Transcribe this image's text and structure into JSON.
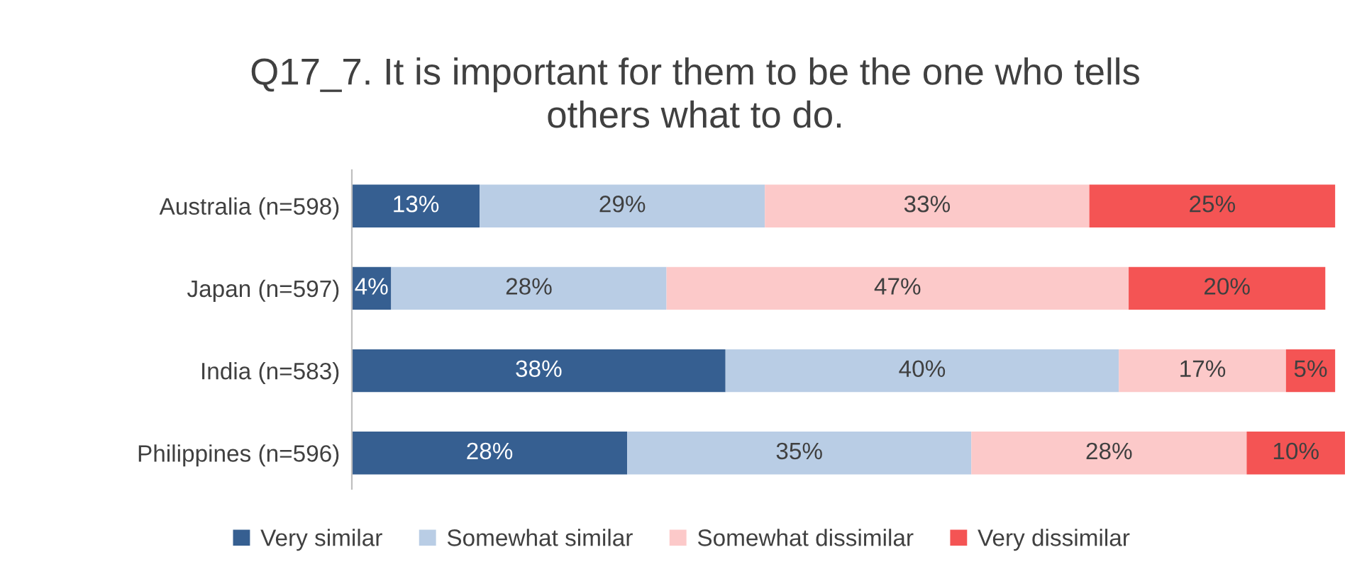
{
  "chart_data": {
    "type": "bar",
    "orientation": "horizontal",
    "stacked": true,
    "title": "Q17_7. It is important for them to be the one who tells\nothers what to do.",
    "categories": [
      "Australia (n=598)",
      "Japan (n=597)",
      "India (n=583)",
      "Philippines (n=596)"
    ],
    "series": [
      {
        "name": "Very similar",
        "color": "#365f91",
        "values": [
          13,
          4,
          38,
          28
        ],
        "value_labels": [
          "13%",
          "4%",
          "38%",
          "28%"
        ]
      },
      {
        "name": "Somewhat similar",
        "color": "#b9cde5",
        "values": [
          29,
          28,
          40,
          35
        ],
        "value_labels": [
          "29%",
          "28%",
          "40%",
          "35%"
        ]
      },
      {
        "name": "Somewhat dissimilar",
        "color": "#fcc9c9",
        "values": [
          33,
          47,
          17,
          28
        ],
        "value_labels": [
          "33%",
          "47%",
          "17%",
          "28%"
        ]
      },
      {
        "name": "Very dissimilar",
        "color": "#f45454",
        "values": [
          25,
          20,
          5,
          10
        ],
        "value_labels": [
          "25%",
          "20%",
          "5%",
          "10%"
        ]
      }
    ],
    "legend": "bottom"
  }
}
